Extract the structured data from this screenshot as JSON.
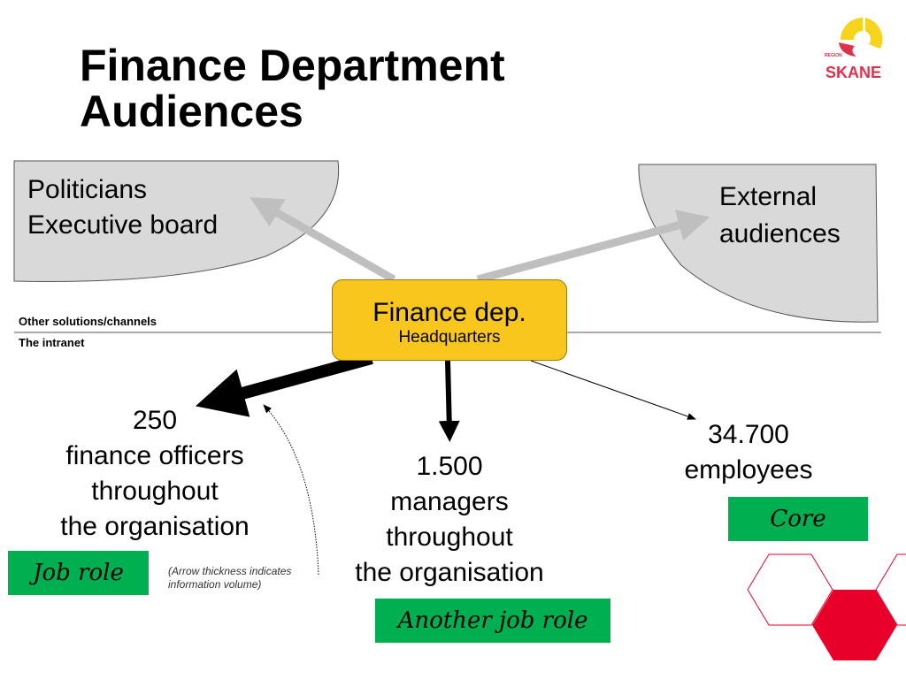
{
  "title": [
    "Finance Department",
    "Audiences"
  ],
  "logo": {
    "text_small": "REGION",
    "text": "SKANE",
    "colors": [
      "#f6d31c",
      "#e0304c"
    ]
  },
  "audiences": {
    "politicians": [
      "Politicians",
      "Executive board"
    ],
    "external": [
      "External",
      "audiences"
    ]
  },
  "channels": {
    "other": "Other solutions/channels",
    "intranet": "The intranet"
  },
  "center": {
    "title": "Finance dep.",
    "subtitle": "Headquarters"
  },
  "groups": [
    {
      "lines": [
        "250",
        "finance officers",
        "throughout",
        "the organisation"
      ],
      "tag": "Job role"
    },
    {
      "lines": [
        "1.500",
        "managers",
        "throughout",
        "the organisation"
      ],
      "tag": "Another job role"
    },
    {
      "lines": [
        "34.700",
        "employees"
      ],
      "tag": "Core"
    }
  ],
  "note": [
    "(Arrow thickness indicates",
    "information volume)"
  ],
  "colors": {
    "center": "#f8c61c",
    "tag": "#00b050",
    "audience": "#d9d9d9",
    "hex_red": "#e8002a"
  }
}
